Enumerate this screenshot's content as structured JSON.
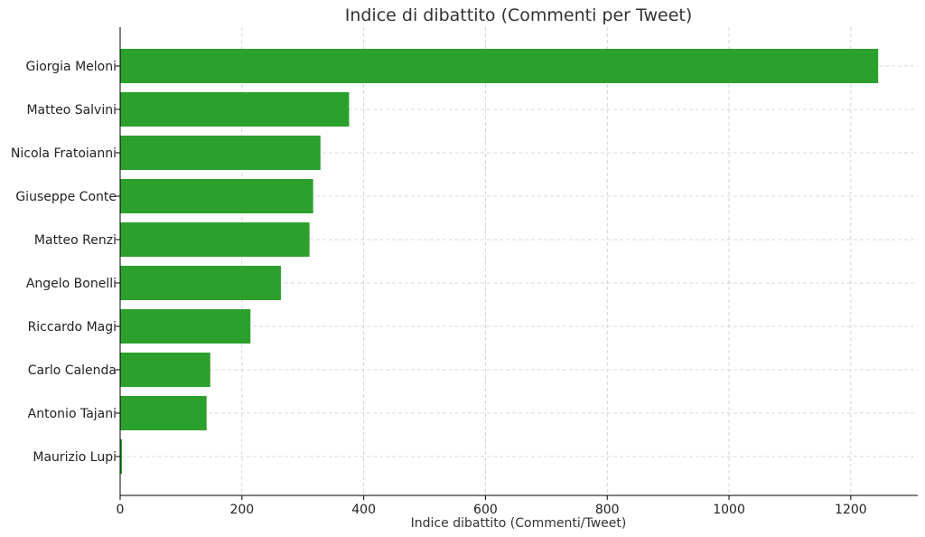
{
  "chart_data": {
    "type": "bar",
    "orientation": "horizontal",
    "title": "Indice di dibattito (Commenti per Tweet)",
    "xlabel": "Indice dibattito (Commenti/Tweet)",
    "ylabel": "",
    "categories": [
      "Giorgia Meloni",
      "Matteo Salvini",
      "Nicola Fratoianni",
      "Giuseppe Conte",
      "Matteo Renzi",
      "Angelo Bonelli",
      "Riccardo Magi",
      "Carlo Calenda",
      "Antonio Tajani",
      "Maurizio Lupi"
    ],
    "values": [
      1245,
      376,
      329,
      317,
      311,
      264,
      214,
      148,
      142,
      3
    ],
    "xlim": [
      0,
      1310
    ],
    "xticks": [
      0,
      200,
      400,
      600,
      800,
      1000,
      1200
    ],
    "grid": true,
    "bar_color": "#2ca02c"
  }
}
